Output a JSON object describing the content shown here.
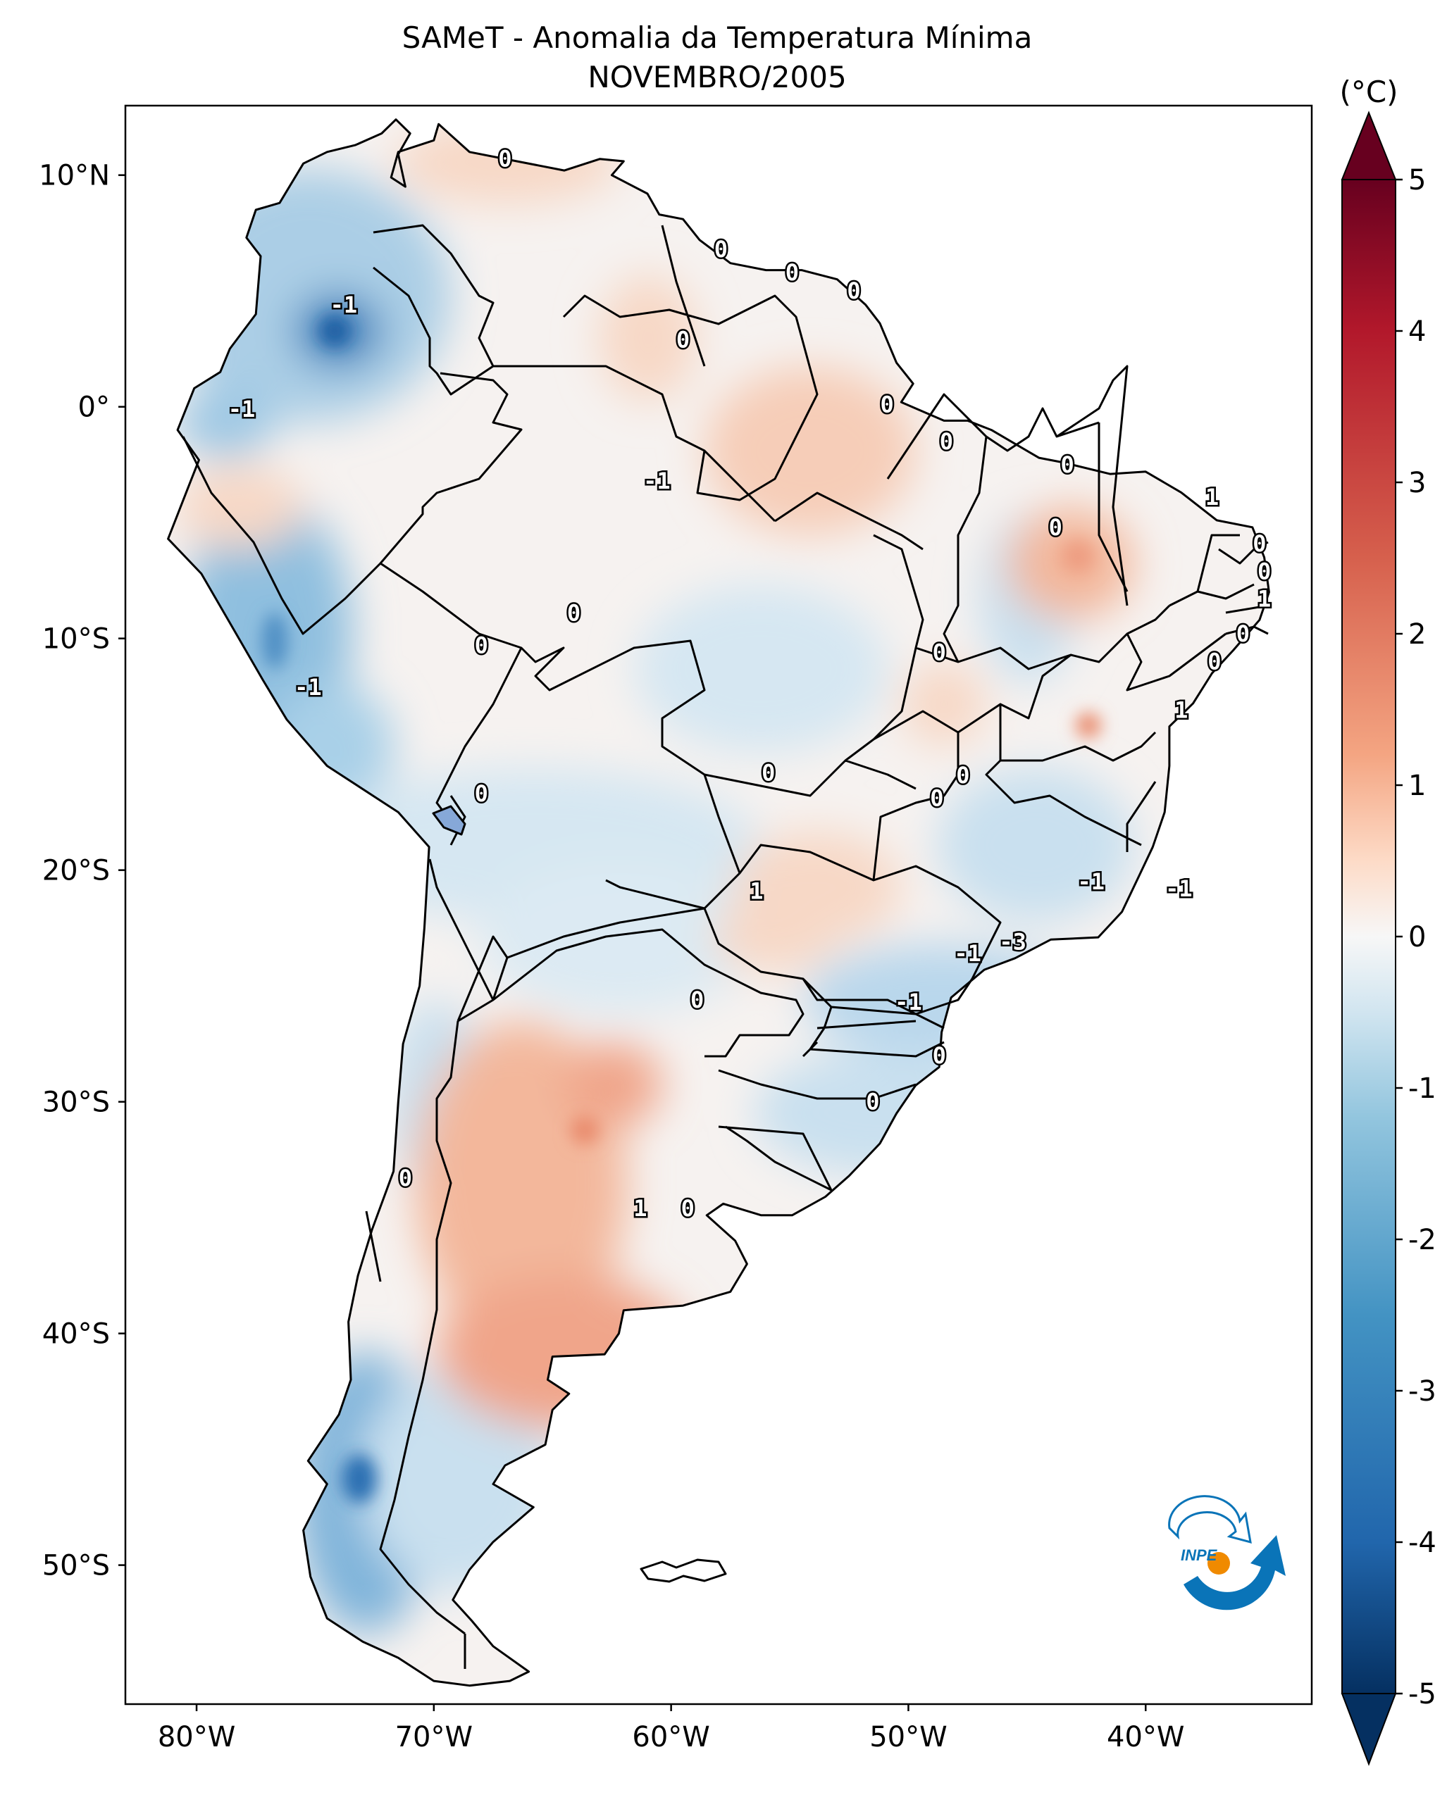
{
  "title": "SAMeT - Anomalia da Temperatura Mínima",
  "subtitle": "NOVEMBRO/2005",
  "units_label": "(°C)",
  "map": {
    "extent": {
      "lon": [
        -83,
        -33
      ],
      "lat": [
        -56,
        13
      ]
    },
    "lat_ticks": [
      {
        "lat": 10,
        "label": "10°N"
      },
      {
        "lat": 0,
        "label": "0°"
      },
      {
        "lat": -10,
        "label": "10°S"
      },
      {
        "lat": -20,
        "label": "20°S"
      },
      {
        "lat": -30,
        "label": "30°S"
      },
      {
        "lat": -40,
        "label": "40°S"
      },
      {
        "lat": -50,
        "label": "50°S"
      }
    ],
    "lon_ticks": [
      {
        "lon": -80,
        "label": "80°W"
      },
      {
        "lon": -70,
        "label": "70°W"
      },
      {
        "lon": -60,
        "label": "60°W"
      },
      {
        "lon": -50,
        "label": "50°W"
      },
      {
        "lon": -40,
        "label": "40°W"
      }
    ],
    "contour_labels": [
      {
        "lon": -67,
        "lat": 10.7,
        "text": "0"
      },
      {
        "lon": -57.9,
        "lat": 6.8,
        "text": "0"
      },
      {
        "lon": -54.9,
        "lat": 5.8,
        "text": "0"
      },
      {
        "lon": -52.3,
        "lat": 5.0,
        "text": "0"
      },
      {
        "lon": -73.8,
        "lat": 4.4,
        "text": "-1"
      },
      {
        "lon": -59.5,
        "lat": 2.9,
        "text": "0"
      },
      {
        "lon": -50.9,
        "lat": 0.1,
        "text": "0"
      },
      {
        "lon": -78.1,
        "lat": -0.1,
        "text": "-1"
      },
      {
        "lon": -48.4,
        "lat": -1.5,
        "text": "0"
      },
      {
        "lon": -60.6,
        "lat": -3.2,
        "text": "-1"
      },
      {
        "lon": -43.3,
        "lat": -2.5,
        "text": "0"
      },
      {
        "lon": -37.2,
        "lat": -3.9,
        "text": "1"
      },
      {
        "lon": -43.8,
        "lat": -5.2,
        "text": "0"
      },
      {
        "lon": -35.2,
        "lat": -5.9,
        "text": "0"
      },
      {
        "lon": -35.0,
        "lat": -7.1,
        "text": "0"
      },
      {
        "lon": -35.0,
        "lat": -8.3,
        "text": "1"
      },
      {
        "lon": -35.9,
        "lat": -9.8,
        "text": "0"
      },
      {
        "lon": -37.1,
        "lat": -11.0,
        "text": "0"
      },
      {
        "lon": -38.5,
        "lat": -13.1,
        "text": "1"
      },
      {
        "lon": -64.1,
        "lat": -8.9,
        "text": "0"
      },
      {
        "lon": -68.0,
        "lat": -10.3,
        "text": "0"
      },
      {
        "lon": -48.7,
        "lat": -10.6,
        "text": "0"
      },
      {
        "lon": -75.3,
        "lat": -12.1,
        "text": "-1"
      },
      {
        "lon": -55.9,
        "lat": -15.8,
        "text": "0"
      },
      {
        "lon": -47.7,
        "lat": -15.9,
        "text": "0"
      },
      {
        "lon": -48.8,
        "lat": -16.9,
        "text": "0"
      },
      {
        "lon": -68.0,
        "lat": -16.7,
        "text": "0"
      },
      {
        "lon": -42.3,
        "lat": -20.5,
        "text": "-1"
      },
      {
        "lon": -38.6,
        "lat": -20.8,
        "text": "-1"
      },
      {
        "lon": -56.4,
        "lat": -20.9,
        "text": "1"
      },
      {
        "lon": -45.6,
        "lat": -23.1,
        "text": "-3"
      },
      {
        "lon": -47.5,
        "lat": -23.6,
        "text": "-1"
      },
      {
        "lon": -50.0,
        "lat": -25.7,
        "text": "-1"
      },
      {
        "lon": -58.9,
        "lat": -25.6,
        "text": "0"
      },
      {
        "lon": -48.7,
        "lat": -28.0,
        "text": "0"
      },
      {
        "lon": -51.5,
        "lat": -30.0,
        "text": "0"
      },
      {
        "lon": -71.2,
        "lat": -33.3,
        "text": "0"
      },
      {
        "lon": -61.3,
        "lat": -34.6,
        "text": "1"
      },
      {
        "lon": -59.3,
        "lat": -34.6,
        "text": "0"
      }
    ]
  },
  "colorbar": {
    "min": -5,
    "max": 5,
    "extend": "both",
    "ticks": [
      {
        "value": 5,
        "label": "5"
      },
      {
        "value": 4,
        "label": "4"
      },
      {
        "value": 3,
        "label": "3"
      },
      {
        "value": 2,
        "label": "2"
      },
      {
        "value": 1,
        "label": "1"
      },
      {
        "value": 0,
        "label": "0"
      },
      {
        "value": -1,
        "label": "-1"
      },
      {
        "value": -2,
        "label": "-2"
      },
      {
        "value": -3,
        "label": "-3"
      },
      {
        "value": -4,
        "label": "-4"
      },
      {
        "value": -5,
        "label": "-5"
      }
    ],
    "colors": [
      "#053061",
      "#2166ac",
      "#4393c3",
      "#92c5de",
      "#d1e5f0",
      "#f7f7f7",
      "#fddbc7",
      "#f4a582",
      "#d6604d",
      "#b2182b",
      "#67001f"
    ]
  },
  "logo": {
    "text": "INPE",
    "colors": [
      "#0a74b8",
      "#f08a00"
    ]
  }
}
